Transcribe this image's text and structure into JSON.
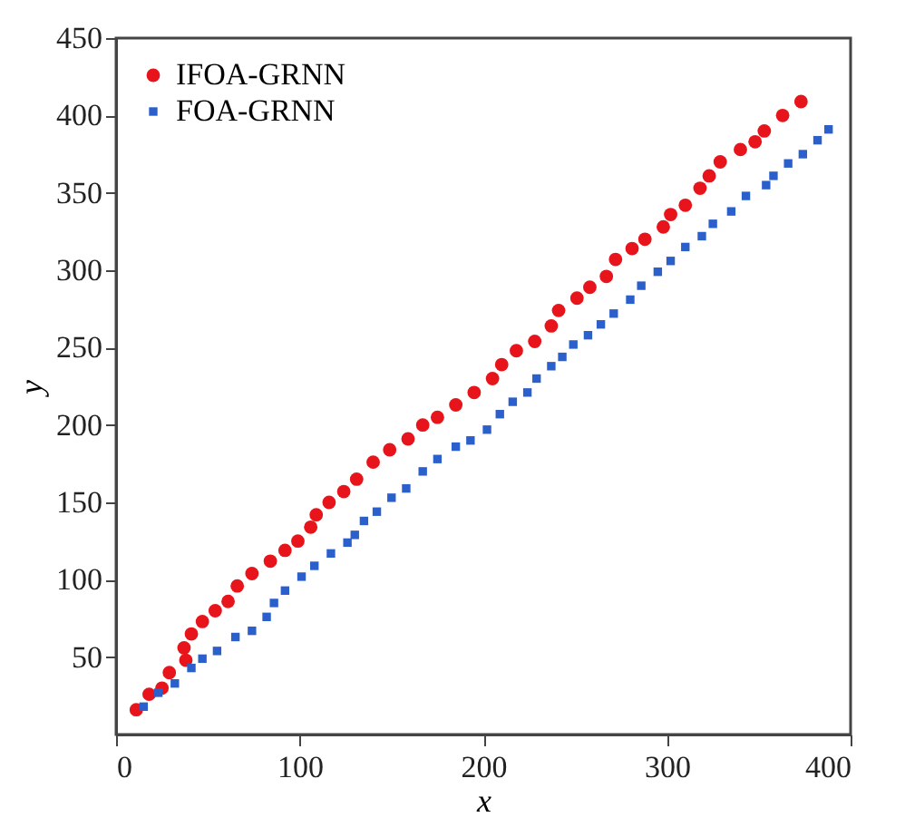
{
  "chart_data": {
    "type": "scatter",
    "xlabel": "x",
    "ylabel": "y",
    "xlim": [
      0,
      400
    ],
    "xticks": [
      0,
      100,
      200,
      300,
      400
    ],
    "ylim": [
      0,
      450
    ],
    "yticks": [
      50,
      100,
      150,
      200,
      250,
      300,
      350,
      400,
      450
    ],
    "grid": false,
    "legend": "top left",
    "series": [
      {
        "name": "IFOA-GRNN",
        "color": "#e8141c",
        "marker": "circle",
        "x": [
          11,
          18,
          25,
          29,
          37,
          38,
          41,
          47,
          54,
          61,
          66,
          74,
          84,
          92,
          99,
          106,
          109,
          116,
          124,
          131,
          140,
          149,
          159,
          167,
          175,
          185,
          195,
          205,
          210,
          218,
          228,
          237,
          241,
          251,
          258,
          267,
          272,
          281,
          288,
          298,
          302,
          310,
          318,
          323,
          329,
          340,
          348,
          353,
          363,
          373
        ],
        "values": [
          16,
          26,
          30,
          40,
          56,
          48,
          65,
          73,
          80,
          86,
          96,
          104,
          112,
          119,
          125,
          134,
          142,
          150,
          157,
          165,
          176,
          184,
          191,
          200,
          205,
          213,
          221,
          230,
          239,
          248,
          254,
          264,
          274,
          282,
          289,
          296,
          307,
          314,
          320,
          328,
          336,
          342,
          353,
          361,
          370,
          378,
          383,
          390,
          400,
          409
        ]
      },
      {
        "name": "FOA-GRNN",
        "color": "#2b5fcc",
        "marker": "square",
        "x": [
          15,
          23,
          32,
          41,
          47,
          55,
          65,
          74,
          82,
          86,
          92,
          101,
          108,
          117,
          126,
          130,
          135,
          142,
          150,
          158,
          167,
          175,
          185,
          193,
          202,
          209,
          216,
          224,
          229,
          237,
          243,
          249,
          257,
          264,
          271,
          280,
          286,
          295,
          302,
          310,
          319,
          325,
          335,
          343,
          354,
          358,
          366,
          374,
          382,
          388
        ],
        "values": [
          18,
          27,
          33,
          43,
          49,
          54,
          63,
          67,
          76,
          85,
          93,
          102,
          109,
          117,
          124,
          129,
          138,
          144,
          153,
          159,
          170,
          178,
          186,
          190,
          197,
          207,
          215,
          221,
          230,
          238,
          244,
          252,
          258,
          265,
          272,
          281,
          290,
          299,
          306,
          315,
          322,
          330,
          338,
          348,
          355,
          361,
          369,
          375,
          384,
          391
        ]
      }
    ]
  }
}
